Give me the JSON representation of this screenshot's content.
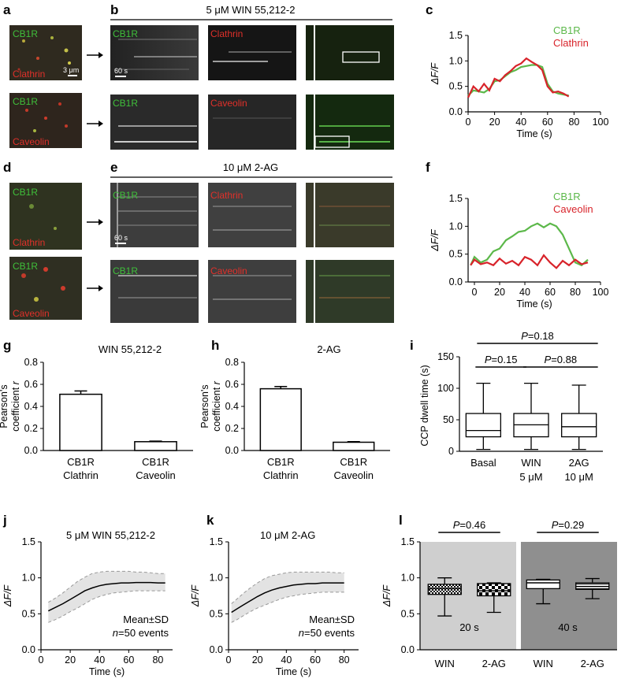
{
  "panels": {
    "a": "a",
    "b": "b",
    "c": "c",
    "d": "d",
    "e": "e",
    "f": "f",
    "g": "g",
    "h": "h",
    "i": "i",
    "j": "j",
    "k": "k",
    "l": "l"
  },
  "colors": {
    "green": "#3a9a2c",
    "red": "#d8232a",
    "green_line": "#5cb84a",
    "red_line": "#d8232a",
    "gray_light": "#cfcfcf",
    "gray_dark": "#8f8f8f"
  },
  "micrographs": {
    "b_header": "5 μM WIN 55,212-2",
    "e_header": "10 μM 2-AG",
    "labels": {
      "cb1r": "CB1R",
      "clathrin": "Clathrin",
      "caveolin": "Caveolin"
    },
    "scale_um": "3 μm",
    "scale_time": "60 s"
  },
  "chart_data": [
    {
      "id": "c",
      "type": "line",
      "ylabel": "ΔF/F",
      "xlabel": "Time (s)",
      "xlim": [
        0,
        100
      ],
      "ylim": [
        0,
        1.5
      ],
      "xticks": [
        "0",
        "20",
        "40",
        "60",
        "80",
        "100"
      ],
      "yticks": [
        "0.0",
        "0.5",
        "1.0",
        "1.5"
      ],
      "series": [
        {
          "name": "CB1R",
          "color": "#5cb84a",
          "x": [
            0,
            4,
            8,
            12,
            16,
            20,
            24,
            28,
            32,
            36,
            40,
            44,
            48,
            52,
            56,
            60,
            64,
            68,
            72,
            76
          ],
          "y": [
            0.32,
            0.42,
            0.4,
            0.38,
            0.45,
            0.6,
            0.62,
            0.7,
            0.78,
            0.82,
            0.88,
            0.9,
            0.92,
            0.92,
            0.88,
            0.55,
            0.4,
            0.36,
            0.34,
            0.32
          ]
        },
        {
          "name": "Clathrin",
          "color": "#d8232a",
          "x": [
            0,
            4,
            8,
            12,
            16,
            20,
            24,
            28,
            32,
            36,
            40,
            44,
            48,
            52,
            56,
            60,
            64,
            68,
            72,
            76
          ],
          "y": [
            0.28,
            0.5,
            0.4,
            0.55,
            0.42,
            0.65,
            0.6,
            0.72,
            0.8,
            0.9,
            0.95,
            1.05,
            0.98,
            0.92,
            0.82,
            0.5,
            0.38,
            0.4,
            0.36,
            0.3
          ]
        }
      ]
    },
    {
      "id": "f",
      "type": "line",
      "ylabel": "ΔF/F",
      "xlabel": "Time (s)",
      "xlim": [
        -5,
        100
      ],
      "ylim": [
        0,
        1.5
      ],
      "xticks": [
        "0",
        "20",
        "40",
        "60",
        "80",
        "100"
      ],
      "yticks": [
        "0.0",
        "0.5",
        "1.0",
        "1.5"
      ],
      "series": [
        {
          "name": "CB1R",
          "color": "#5cb84a",
          "x": [
            -3,
            0,
            5,
            10,
            15,
            20,
            25,
            30,
            35,
            40,
            45,
            50,
            55,
            60,
            65,
            70,
            75,
            80,
            85,
            90
          ],
          "y": [
            0.3,
            0.45,
            0.35,
            0.4,
            0.55,
            0.6,
            0.75,
            0.82,
            0.9,
            0.92,
            1.0,
            1.05,
            0.98,
            1.05,
            1.0,
            0.85,
            0.6,
            0.35,
            0.3,
            0.4
          ]
        },
        {
          "name": "Caveolin",
          "color": "#d8232a",
          "x": [
            -3,
            0,
            5,
            10,
            15,
            20,
            25,
            30,
            35,
            40,
            45,
            50,
            55,
            60,
            65,
            70,
            75,
            80,
            85,
            90
          ],
          "y": [
            0.3,
            0.4,
            0.32,
            0.35,
            0.3,
            0.42,
            0.33,
            0.38,
            0.3,
            0.45,
            0.4,
            0.3,
            0.48,
            0.35,
            0.25,
            0.38,
            0.3,
            0.4,
            0.32,
            0.35
          ]
        }
      ]
    },
    {
      "id": "g",
      "type": "bar",
      "title": "WIN 55,212-2",
      "ylabel": "Pearson's coefficient r",
      "categories": [
        "CB1R\nClathrin",
        "CB1R\nCaveolin"
      ],
      "category_lines": [
        [
          "CB1R",
          "Clathrin"
        ],
        [
          "CB1R",
          "Caveolin"
        ]
      ],
      "values": [
        0.51,
        0.08
      ],
      "errors": [
        0.03,
        0.005
      ],
      "ylim": [
        0,
        0.8
      ],
      "yticks": [
        "0.0",
        "0.2",
        "0.4",
        "0.6",
        "0.8"
      ]
    },
    {
      "id": "h",
      "type": "bar",
      "title": "2-AG",
      "ylabel": "Pearson's coefficient r",
      "categories": [
        "CB1R\nClathrin",
        "CB1R\nCaveolin"
      ],
      "category_lines": [
        [
          "CB1R",
          "Clathrin"
        ],
        [
          "CB1R",
          "Caveolin"
        ]
      ],
      "values": [
        0.56,
        0.075
      ],
      "errors": [
        0.02,
        0.005
      ],
      "ylim": [
        0,
        0.8
      ],
      "yticks": [
        "0.0",
        "0.2",
        "0.4",
        "0.6",
        "0.8"
      ]
    },
    {
      "id": "i",
      "type": "boxplot",
      "ylabel": "CCP dwell time (s)",
      "categories": [
        [
          "Basal"
        ],
        [
          "WIN",
          "5 μM"
        ],
        [
          "2AG",
          "10 μM"
        ]
      ],
      "boxes": [
        {
          "min": 3,
          "q1": 23,
          "median": 33,
          "q3": 60,
          "max": 108
        },
        {
          "min": 3,
          "q1": 23,
          "median": 42,
          "q3": 60,
          "max": 108
        },
        {
          "min": 3,
          "q1": 23,
          "median": 39,
          "q3": 60,
          "max": 105
        }
      ],
      "ylim": [
        0,
        150
      ],
      "yticks": [
        "0",
        "50",
        "100",
        "150"
      ],
      "comparisons": [
        {
          "from": 0,
          "to": 1,
          "p": "0.15"
        },
        {
          "from": 1,
          "to": 2,
          "p": "0.88"
        },
        {
          "from": 0,
          "to": 2,
          "p": "0.18"
        }
      ]
    },
    {
      "id": "j",
      "type": "line",
      "title": "5 μM WIN 55,212-2",
      "ylabel": "ΔF/F",
      "xlabel": "Time (s)",
      "xlim": [
        0,
        90
      ],
      "ylim": [
        0,
        1.5
      ],
      "xticks": [
        "0",
        "20",
        "40",
        "60",
        "80"
      ],
      "yticks": [
        "0.0",
        "0.5",
        "1.0",
        "1.5"
      ],
      "annotation_lines": [
        "Mean±SD",
        "n=50 events"
      ],
      "x": [
        5,
        10,
        15,
        20,
        25,
        30,
        35,
        40,
        45,
        50,
        55,
        60,
        65,
        70,
        75,
        80,
        85
      ],
      "mean": [
        0.54,
        0.59,
        0.64,
        0.7,
        0.76,
        0.82,
        0.86,
        0.89,
        0.91,
        0.92,
        0.93,
        0.93,
        0.935,
        0.935,
        0.935,
        0.93,
        0.93
      ],
      "upper": [
        0.66,
        0.72,
        0.79,
        0.87,
        0.95,
        1.01,
        1.06,
        1.08,
        1.09,
        1.09,
        1.09,
        1.09,
        1.08,
        1.08,
        1.07,
        1.06,
        1.06
      ],
      "lower": [
        0.38,
        0.42,
        0.47,
        0.53,
        0.58,
        0.64,
        0.7,
        0.74,
        0.77,
        0.79,
        0.8,
        0.81,
        0.82,
        0.82,
        0.82,
        0.82,
        0.82
      ]
    },
    {
      "id": "k",
      "type": "line",
      "title": "10 μM 2-AG",
      "ylabel": "ΔF/F",
      "xlabel": "Time (s)",
      "xlim": [
        0,
        90
      ],
      "ylim": [
        0,
        1.5
      ],
      "xticks": [
        "0",
        "20",
        "40",
        "60",
        "80"
      ],
      "yticks": [
        "0.0",
        "0.5",
        "1.0",
        "1.5"
      ],
      "annotation_lines": [
        "Mean±SD",
        "n=50 events"
      ],
      "x": [
        2,
        6,
        10,
        15,
        20,
        25,
        30,
        35,
        40,
        45,
        50,
        55,
        60,
        65,
        70,
        75,
        80
      ],
      "mean": [
        0.52,
        0.57,
        0.62,
        0.68,
        0.74,
        0.79,
        0.83,
        0.86,
        0.88,
        0.9,
        0.91,
        0.92,
        0.92,
        0.93,
        0.93,
        0.93,
        0.93
      ],
      "upper": [
        0.64,
        0.71,
        0.78,
        0.86,
        0.93,
        0.99,
        1.03,
        1.05,
        1.07,
        1.08,
        1.08,
        1.08,
        1.08,
        1.08,
        1.08,
        1.07,
        1.07
      ],
      "lower": [
        0.38,
        0.42,
        0.47,
        0.53,
        0.58,
        0.62,
        0.66,
        0.7,
        0.73,
        0.75,
        0.77,
        0.78,
        0.79,
        0.8,
        0.8,
        0.8,
        0.8
      ]
    },
    {
      "id": "l",
      "type": "boxplot",
      "ylabel": "ΔF/F",
      "categories": [
        "WIN",
        "2-AG",
        "WIN",
        "2-AG"
      ],
      "groups": [
        {
          "label": "20 s",
          "bg": "#cfcfcf"
        },
        {
          "label": "40 s",
          "bg": "#8f8f8f"
        }
      ],
      "boxes": [
        {
          "min": 0.47,
          "q1": 0.77,
          "median": 0.85,
          "q3": 0.91,
          "max": 1.0,
          "pattern": "checker"
        },
        {
          "min": 0.52,
          "q1": 0.75,
          "median": 0.82,
          "q3": 0.92,
          "max": 0.93,
          "pattern": "checker-big"
        },
        {
          "min": 0.64,
          "q1": 0.85,
          "median": 0.93,
          "q3": 0.97,
          "max": 0.98,
          "pattern": "white"
        },
        {
          "min": 0.71,
          "q1": 0.84,
          "median": 0.88,
          "q3": 0.93,
          "max": 0.99,
          "pattern": "hstripe"
        }
      ],
      "ylim": [
        0,
        1.5
      ],
      "yticks": [
        "0.0",
        "0.5",
        "1.0",
        "1.5"
      ],
      "comparisons": [
        {
          "from": 0,
          "to": 1,
          "p": "0.46"
        },
        {
          "from": 2,
          "to": 3,
          "p": "0.29"
        }
      ]
    }
  ]
}
